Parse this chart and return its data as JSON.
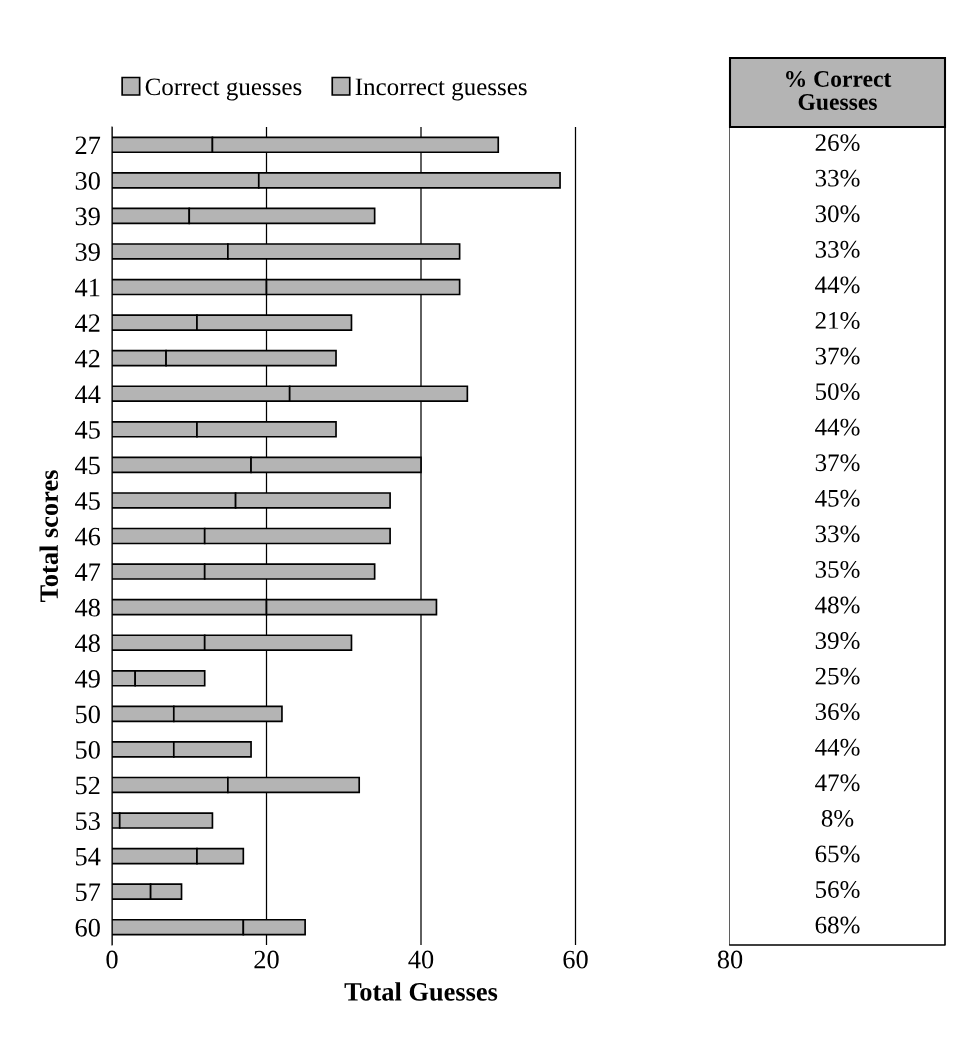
{
  "chart_data": {
    "type": "bar",
    "orientation": "horizontal",
    "stacked": true,
    "categories": [
      "27",
      "30",
      "39",
      "39",
      "41",
      "42",
      "42",
      "44",
      "45",
      "45",
      "45",
      "46",
      "47",
      "48",
      "48",
      "49",
      "50",
      "50",
      "52",
      "53",
      "54",
      "57",
      "60"
    ],
    "series": [
      {
        "name": "Correct guesses",
        "color": "#b4b4b4",
        "values": [
          13,
          19,
          10,
          15,
          20,
          11,
          7,
          23,
          11,
          18,
          16,
          12,
          12,
          20,
          12,
          3,
          8,
          8,
          15,
          1,
          11,
          5,
          17
        ]
      },
      {
        "name": "Incorrect guesses",
        "color": "#b4b4b4",
        "values": [
          37,
          39,
          24,
          30,
          25,
          20,
          22,
          23,
          18,
          22,
          20,
          24,
          22,
          22,
          19,
          9,
          14,
          10,
          17,
          12,
          6,
          4,
          8
        ]
      }
    ],
    "xlim": [
      0,
      80
    ],
    "xticks": [
      0,
      20,
      40,
      60,
      80
    ],
    "xlabel": "Total Guesses",
    "ylabel": "Total scores",
    "grid": "x",
    "legend": "top left",
    "annotations": [
      "% Correct\nGuesses",
      "26%",
      "33%",
      "30%",
      "33%",
      "44%",
      "21%",
      "37%",
      "50%",
      "44%",
      "37%",
      "45%",
      "33%",
      "35%",
      "48%",
      "39%",
      "25%",
      "36%",
      "44%",
      "47%",
      "8%",
      "65%",
      "56%",
      "68%"
    ]
  }
}
